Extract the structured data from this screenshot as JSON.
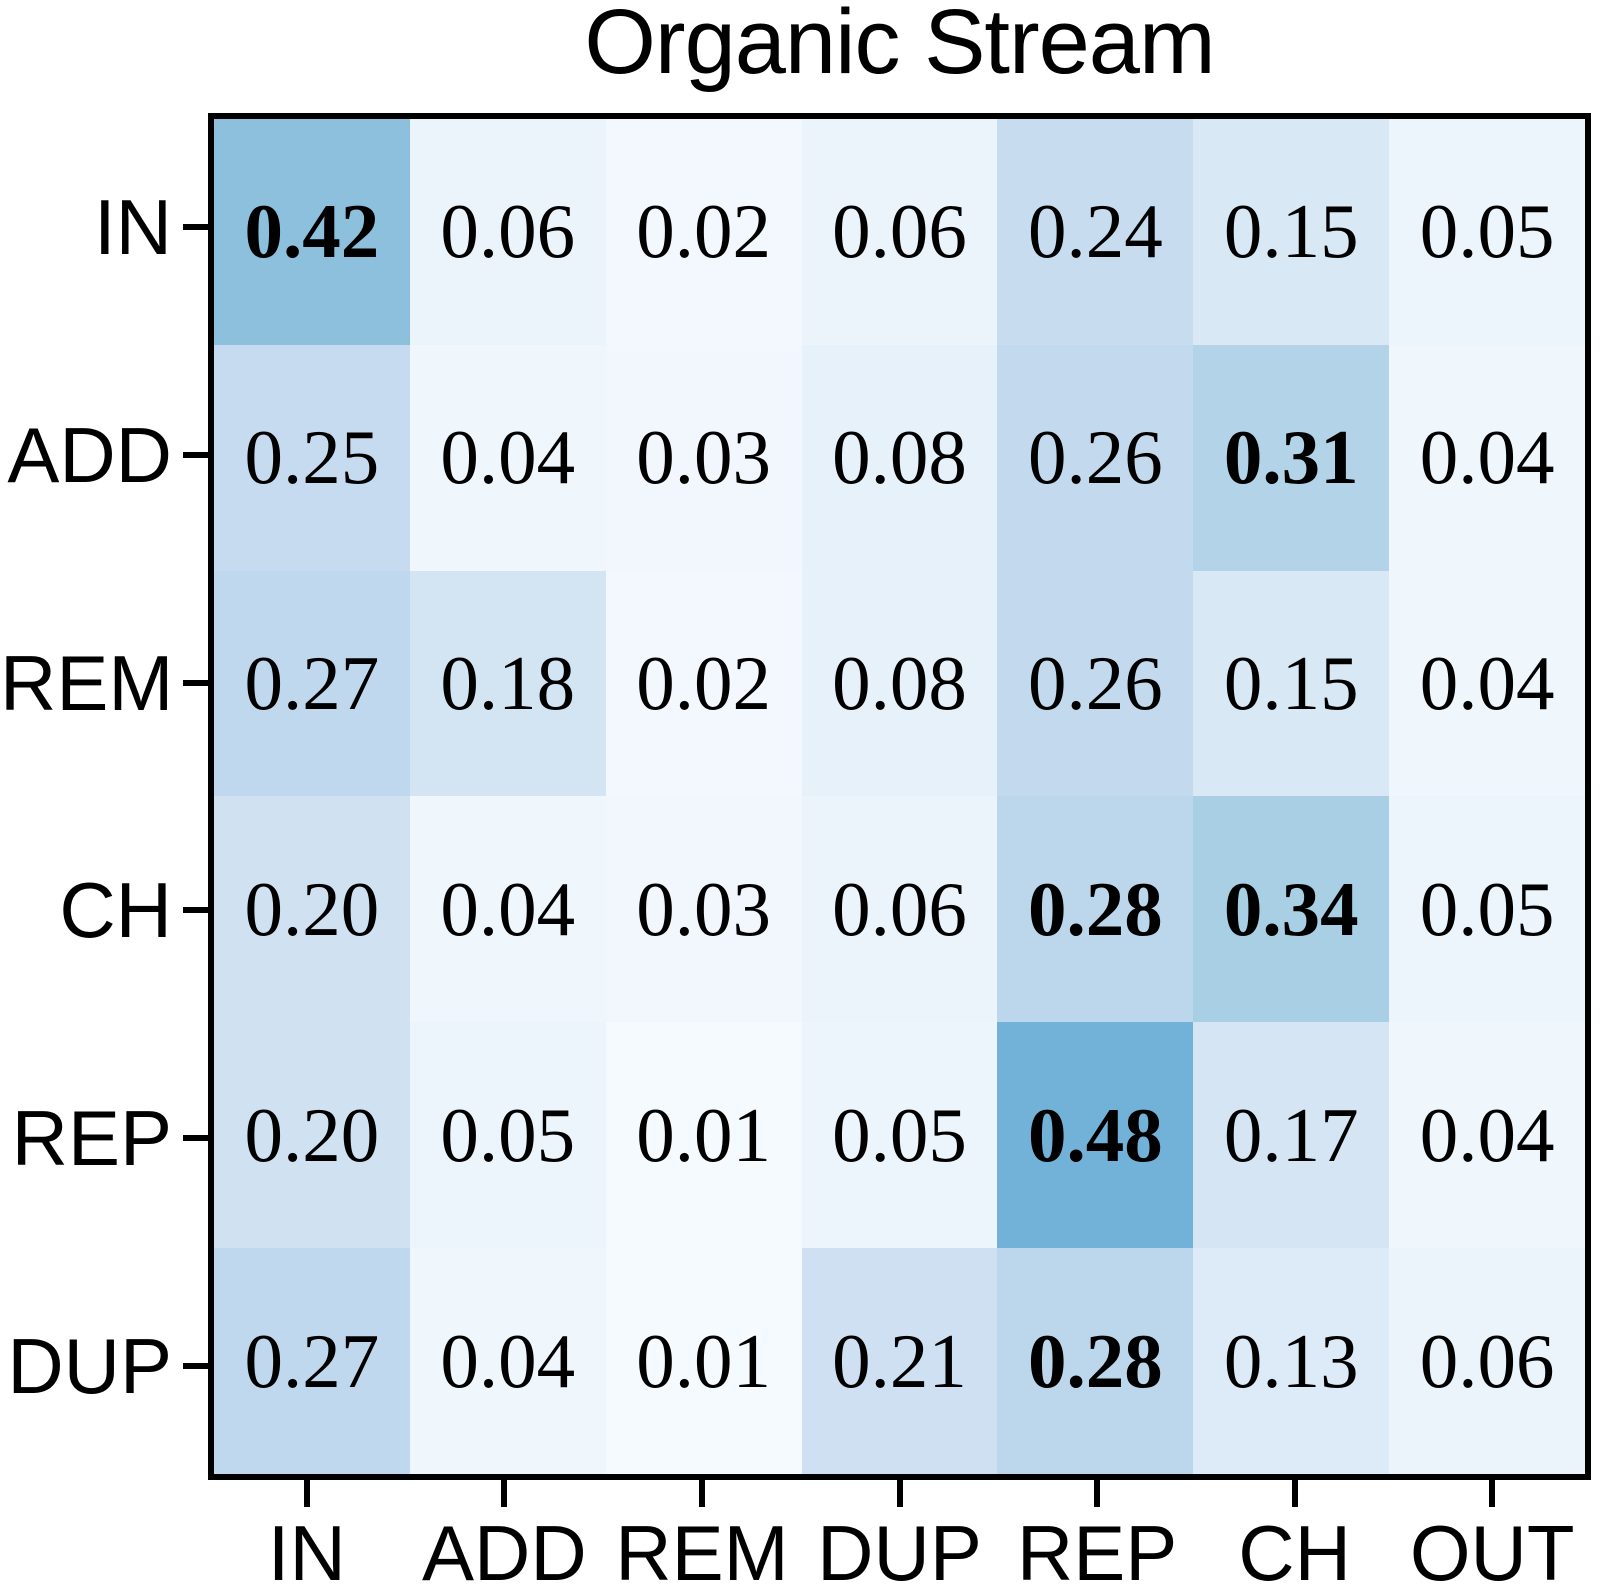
{
  "title": "Organic Stream",
  "chart_data": {
    "type": "heatmap",
    "title": "Organic Stream",
    "rows": [
      "IN",
      "ADD",
      "REM",
      "CH",
      "REP",
      "DUP"
    ],
    "columns": [
      "IN",
      "ADD",
      "REM",
      "DUP",
      "REP",
      "CH",
      "OUT"
    ],
    "values": [
      [
        0.42,
        0.06,
        0.02,
        0.06,
        0.24,
        0.15,
        0.05
      ],
      [
        0.25,
        0.04,
        0.03,
        0.08,
        0.26,
        0.31,
        0.04
      ],
      [
        0.27,
        0.18,
        0.02,
        0.08,
        0.26,
        0.15,
        0.04
      ],
      [
        0.2,
        0.04,
        0.03,
        0.06,
        0.28,
        0.34,
        0.05
      ],
      [
        0.2,
        0.05,
        0.01,
        0.05,
        0.48,
        0.17,
        0.04
      ],
      [
        0.27,
        0.04,
        0.01,
        0.21,
        0.28,
        0.13,
        0.06
      ]
    ],
    "value_decimals": 2,
    "bold_threshold": 0.28,
    "colormap": {
      "name": "Blues",
      "domain": [
        0,
        1
      ],
      "stops": [
        [
          0.0,
          "#f7fbff"
        ],
        [
          0.125,
          "#deebf7"
        ],
        [
          0.25,
          "#c6dbef"
        ],
        [
          0.375,
          "#9ecae1"
        ],
        [
          0.5,
          "#6baed6"
        ],
        [
          0.625,
          "#4292c6"
        ],
        [
          0.75,
          "#2171b5"
        ],
        [
          0.875,
          "#08519c"
        ],
        [
          1.0,
          "#08306b"
        ]
      ]
    },
    "text_color": "#000000",
    "axis_color": "#000000",
    "background_color": "#ffffff",
    "legend": "none",
    "grid": "off"
  }
}
